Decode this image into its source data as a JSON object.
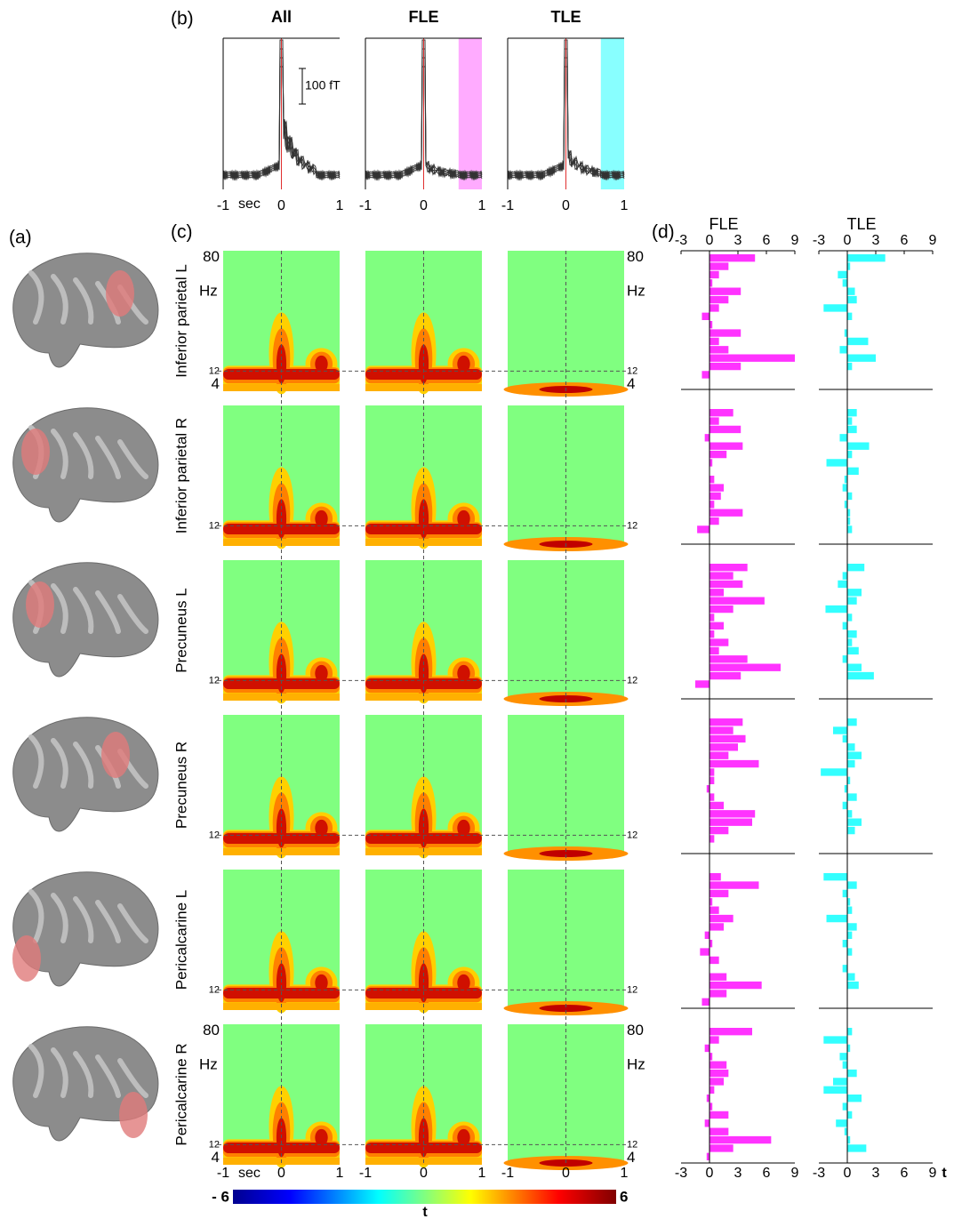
{
  "panel_labels": [
    "(a)",
    "(b)",
    "(c)",
    "(d)"
  ],
  "chart_data": [
    {
      "type": "line",
      "titles": [
        "All",
        "FLE",
        "TLE"
      ],
      "xlim": [
        -1,
        1
      ],
      "xticks": [
        -1,
        0,
        1
      ],
      "xlabel": "sec",
      "scale_bar": "100 fT",
      "shaded": {
        "xlim": [
          0.6,
          1
        ],
        "colors": [
          null,
          "#ff88ff",
          "#55ffff"
        ]
      }
    },
    {
      "type": "heatmap",
      "row_labels": [
        "Inferior parietal L",
        "Inferior parietal R",
        "Precuneus L",
        "Precuneus R",
        "Pericalcarine L",
        "Pericalcarine R"
      ],
      "xlim": [
        -1,
        1
      ],
      "xticks": [
        -1,
        0,
        1
      ],
      "xlabel": "sec",
      "ylim": [
        0,
        84
      ],
      "yticks": [
        4,
        12,
        80
      ],
      "ylabel": "Hz",
      "colorbar": {
        "lim": [
          -6,
          6
        ],
        "ticks": [
          {
            "value": -6,
            "label": "- 6"
          },
          6
        ],
        "label": "t"
      }
    },
    {
      "type": "bar",
      "orientation": "horizontal",
      "xlim": [
        -3,
        9
      ],
      "xticks": [
        -3,
        0,
        3,
        6,
        9
      ],
      "xlabel": "t",
      "series": [
        {
          "name": "FLE",
          "color": "#ff33ff",
          "values": [
            [
              4.8,
              2.0,
              1.0,
              0.3,
              3.3,
              2.0,
              1.0,
              -0.8,
              0.3,
              3.3,
              1.0,
              2.0,
              9.0,
              3.3,
              -0.8,
              0.0
            ],
            [
              2.5,
              1.0,
              3.3,
              -0.5,
              3.5,
              1.8,
              0.3,
              0.0,
              0.5,
              1.5,
              1.2,
              0.5,
              3.5,
              1.0,
              -1.3,
              0.0
            ],
            [
              4.0,
              2.5,
              3.5,
              1.5,
              5.8,
              2.5,
              0.5,
              1.5,
              0.5,
              2.0,
              1.0,
              4.0,
              7.5,
              3.3,
              -1.5,
              0.0
            ],
            [
              3.5,
              2.5,
              3.8,
              3.0,
              2.0,
              5.2,
              0.5,
              0.5,
              -0.3,
              0.5,
              1.5,
              4.8,
              4.5,
              2.0,
              0.5,
              0.0
            ],
            [
              1.2,
              5.2,
              2.0,
              0.3,
              1.0,
              2.5,
              1.5,
              -0.5,
              0.3,
              -1.0,
              1.0,
              0.0,
              1.8,
              5.5,
              1.8,
              -0.8
            ],
            [
              4.5,
              1.0,
              -0.5,
              0.3,
              1.8,
              2.0,
              1.5,
              0.5,
              -0.3,
              0.3,
              2.0,
              -0.5,
              2.0,
              6.5,
              2.5,
              -0.3
            ]
          ]
        },
        {
          "name": "TLE",
          "color": "#33ffff",
          "values": [
            [
              4.0,
              0.3,
              -1.0,
              -0.5,
              0.8,
              1.0,
              -2.5,
              0.5,
              0.0,
              -0.3,
              2.2,
              -0.8,
              3.0,
              0.5,
              0.0,
              0.0
            ],
            [
              1.0,
              0.5,
              1.0,
              -0.8,
              2.3,
              0.5,
              -2.2,
              1.2,
              -0.3,
              -0.5,
              0.5,
              -0.3,
              0.3,
              0.3,
              0.5,
              0.0
            ],
            [
              1.8,
              -0.5,
              -1.0,
              1.5,
              1.0,
              -2.3,
              0.5,
              -0.5,
              1.0,
              0.5,
              1.2,
              -0.5,
              1.5,
              2.8,
              0.0,
              0.0
            ],
            [
              1.0,
              -1.5,
              -0.5,
              0.8,
              1.5,
              0.8,
              -2.8,
              0.3,
              -0.3,
              1.0,
              -0.5,
              0.5,
              1.5,
              0.8,
              0.0,
              0.0
            ],
            [
              -2.5,
              1.0,
              -0.5,
              0.3,
              0.5,
              -2.2,
              1.0,
              0.5,
              -0.5,
              0.5,
              0.0,
              -0.5,
              0.8,
              1.2,
              0.0,
              0.0
            ],
            [
              0.5,
              -2.5,
              0.3,
              -0.8,
              -0.5,
              1.0,
              -1.5,
              -2.5,
              1.5,
              -0.5,
              0.5,
              -1.2,
              -0.3,
              0.3,
              2.0,
              0.0
            ]
          ]
        }
      ]
    }
  ]
}
